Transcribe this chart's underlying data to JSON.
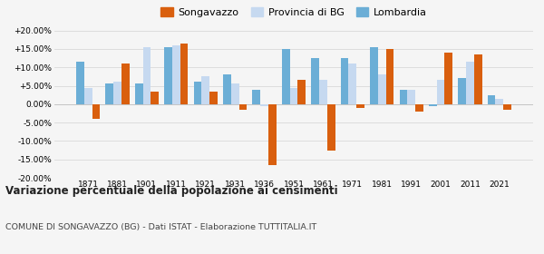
{
  "years": [
    1871,
    1881,
    1901,
    1911,
    1921,
    1931,
    1936,
    1951,
    1961,
    1971,
    1981,
    1991,
    2001,
    2011,
    2021
  ],
  "songavazzo": [
    -4.0,
    11.0,
    3.5,
    16.5,
    3.5,
    -1.5,
    -16.5,
    6.5,
    -12.5,
    -1.0,
    15.0,
    -2.0,
    14.0,
    13.5,
    -1.5
  ],
  "provincia_bg": [
    4.5,
    6.0,
    15.5,
    16.0,
    7.5,
    5.5,
    -0.5,
    4.5,
    6.5,
    11.0,
    8.0,
    4.0,
    6.5,
    11.5,
    1.5
  ],
  "lombardia": [
    11.5,
    5.5,
    5.5,
    15.5,
    6.0,
    8.0,
    4.0,
    15.0,
    12.5,
    12.5,
    15.5,
    4.0,
    -0.5,
    7.0,
    2.5
  ],
  "songavazzo_color": "#d95f0e",
  "provincia_bg_color": "#c6d9f0",
  "lombardia_color": "#6baed6",
  "ylim": [
    -20,
    20
  ],
  "yticks": [
    -20,
    -15,
    -10,
    -5,
    0,
    5,
    10,
    15,
    20
  ],
  "title": "Variazione percentuale della popolazione ai censimenti",
  "subtitle": "COMUNE DI SONGAVAZZO (BG) - Dati ISTAT - Elaborazione TUTTITALIA.IT",
  "legend_labels": [
    "Songavazzo",
    "Provincia di BG",
    "Lombardia"
  ],
  "background_color": "#f5f5f5",
  "grid_color": "#dddddd"
}
